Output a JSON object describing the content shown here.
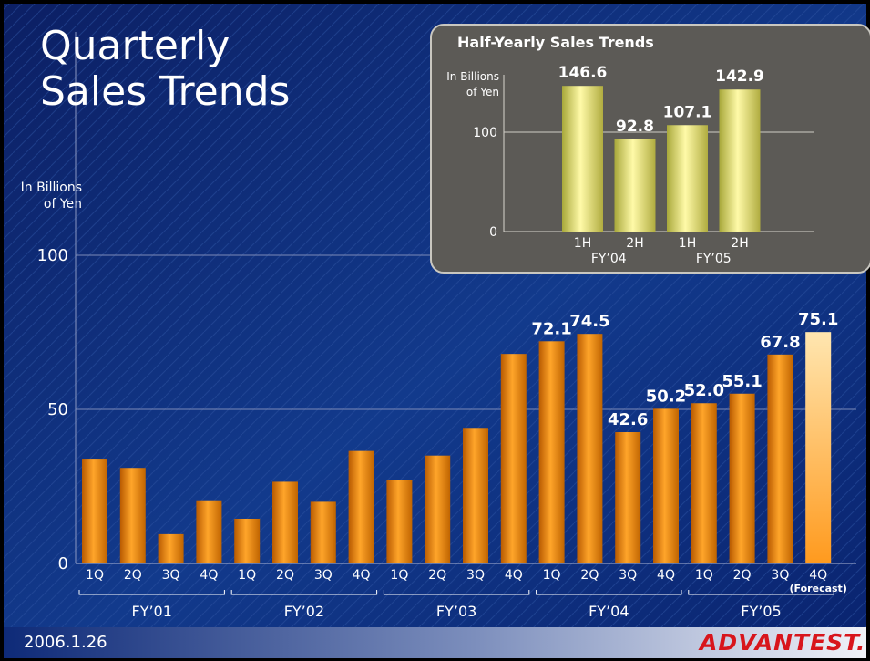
{
  "slide": {
    "title_line1": "Quarterly",
    "title_line2": "Sales Trends",
    "date": "2006.1.26",
    "logo": "ADVANTEST."
  },
  "chart_data": [
    {
      "type": "bar",
      "name": "quarterly",
      "ylabel_line1": "In Billions",
      "ylabel_line2": "of Yen",
      "ylim": [
        0,
        100
      ],
      "yticks": [
        0,
        50,
        100
      ],
      "grid": true,
      "categories": [
        "1Q",
        "2Q",
        "3Q",
        "4Q",
        "1Q",
        "2Q",
        "3Q",
        "4Q",
        "1Q",
        "2Q",
        "3Q",
        "4Q",
        "1Q",
        "2Q",
        "3Q",
        "4Q",
        "1Q",
        "2Q",
        "3Q",
        "4Q"
      ],
      "values": [
        34,
        31,
        9.5,
        20.5,
        14.5,
        26.5,
        20,
        36.5,
        27,
        35,
        44,
        68,
        72.1,
        74.5,
        42.6,
        50.2,
        52.0,
        55.1,
        67.8,
        75.1
      ],
      "value_labels": [
        "",
        "",
        "",
        "",
        "",
        "",
        "",
        "",
        "",
        "",
        "",
        "",
        "72.1",
        "74.5",
        "42.6",
        "50.2",
        "52.0",
        "55.1",
        "67.8",
        "75.1"
      ],
      "forecast_index": 19,
      "forecast_label": "(Forecast)",
      "groups": [
        {
          "label": "FY’01",
          "start": 0,
          "end": 3
        },
        {
          "label": "FY’02",
          "start": 4,
          "end": 7
        },
        {
          "label": "FY’03",
          "start": 8,
          "end": 11
        },
        {
          "label": "FY’04",
          "start": 12,
          "end": 15
        },
        {
          "label": "FY’05",
          "start": 16,
          "end": 19
        }
      ],
      "colors": {
        "bar": "#f08a0c",
        "forecast": "#ffc060",
        "grid": "#7c8ab8",
        "text": "#ffffff"
      }
    },
    {
      "type": "bar",
      "name": "half-yearly",
      "title": "Half-Yearly Sales Trends",
      "ylabel_line1": "In Billions",
      "ylabel_line2": "of Yen",
      "ylim": [
        0,
        200
      ],
      "yticks": [
        0,
        100
      ],
      "grid": true,
      "categories": [
        "1H",
        "2H",
        "1H",
        "2H"
      ],
      "values": [
        146.6,
        92.8,
        107.1,
        142.9
      ],
      "value_labels": [
        "146.6",
        "92.8",
        "107.1",
        "142.9"
      ],
      "groups": [
        {
          "label": "FY’04",
          "start": 0,
          "end": 1
        },
        {
          "label": "FY’05",
          "start": 2,
          "end": 3
        }
      ],
      "colors": {
        "bar": "#e4e070",
        "panel": "#5c5a56",
        "text": "#ffffff"
      }
    }
  ]
}
